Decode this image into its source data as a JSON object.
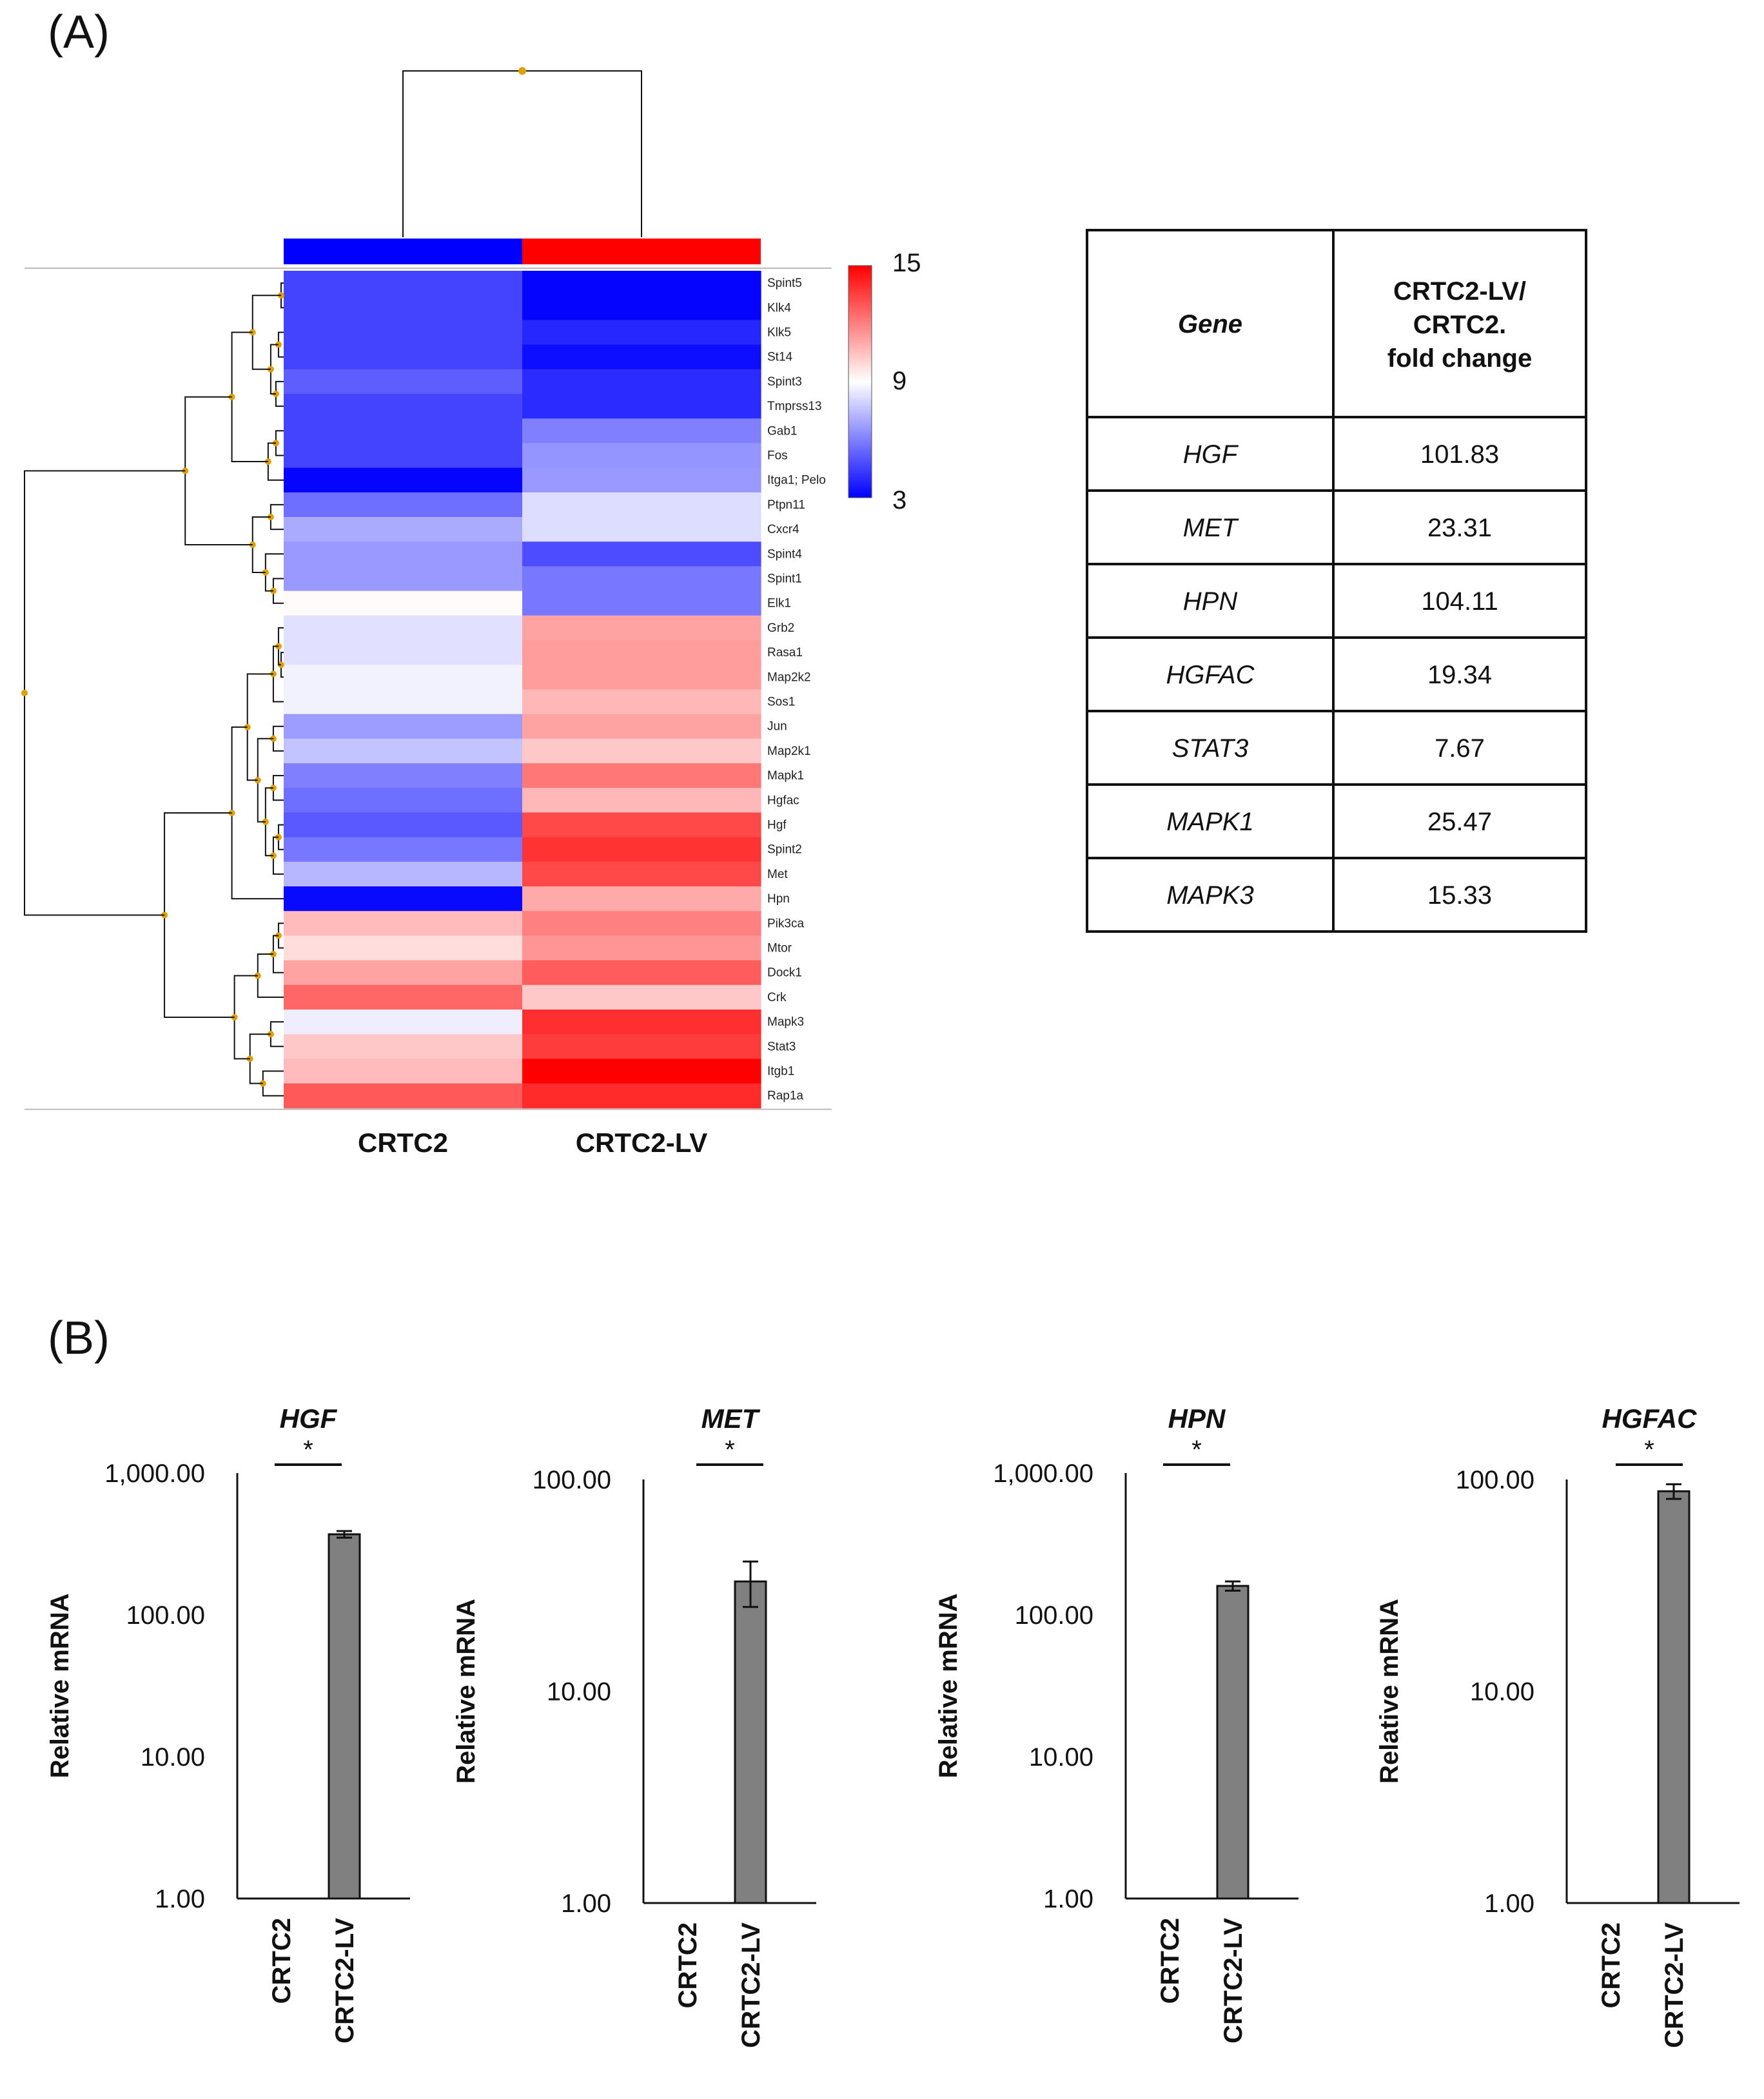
{
  "panel_a": {
    "label": "(A)"
  },
  "panel_b": {
    "label": "(B)"
  },
  "chart_data": [
    {
      "type": "heatmap",
      "columns": [
        "CRTC2",
        "CRTC2-LV"
      ],
      "column_group_colors": [
        "#0000ff",
        "#ff0000"
      ],
      "rows": [
        "Spint5",
        "Klk4",
        "Klk5",
        "St14",
        "Spint3",
        "Tmprss13",
        "Gab1",
        "Fos",
        "Itga1; Pelo",
        "Ptpn11",
        "Cxcr4",
        "Spint4",
        "Spint1",
        "Elk1",
        "Grb2",
        "Rasa1",
        "Map2k2",
        "Sos1",
        "Jun",
        "Map2k1",
        "Mapk1",
        "Hgfac",
        "Hgf",
        "Spint2",
        "Met",
        "Hpn",
        "Pik3ca",
        "Mtor",
        "Dock1",
        "Crk",
        "Mapk3",
        "Stat3",
        "Itgb1",
        "Rap1a"
      ],
      "values": [
        [
          4.6,
          3.1
        ],
        [
          4.6,
          3.1
        ],
        [
          4.6,
          3.9
        ],
        [
          4.6,
          3.3
        ],
        [
          5.2,
          4.0
        ],
        [
          4.6,
          4.0
        ],
        [
          4.6,
          6.0
        ],
        [
          4.6,
          6.5
        ],
        [
          3.1,
          6.6
        ],
        [
          5.6,
          8.2
        ],
        [
          7.0,
          8.2
        ],
        [
          6.6,
          4.8
        ],
        [
          6.6,
          5.8
        ],
        [
          9.1,
          5.8
        ],
        [
          8.3,
          11.2
        ],
        [
          8.3,
          11.3
        ],
        [
          8.7,
          11.3
        ],
        [
          8.7,
          10.7
        ],
        [
          6.7,
          11.2
        ],
        [
          7.6,
          10.3
        ],
        [
          6.0,
          12.2
        ],
        [
          5.6,
          10.7
        ],
        [
          5.1,
          13.3
        ],
        [
          5.8,
          13.8
        ],
        [
          7.3,
          13.3
        ],
        [
          3.2,
          11.0
        ],
        [
          10.6,
          12.0
        ],
        [
          9.8,
          11.5
        ],
        [
          11.2,
          12.8
        ],
        [
          12.6,
          10.3
        ],
        [
          8.6,
          13.9
        ],
        [
          10.3,
          13.6
        ],
        [
          10.6,
          15.0
        ],
        [
          12.9,
          14.0
        ]
      ],
      "colorscale": {
        "min": 3,
        "mid": 9,
        "max": 15,
        "colors": [
          "#0000ff",
          "#ffffff",
          "#ff0000"
        ],
        "ticks": [
          "15",
          "9",
          "3"
        ]
      },
      "dendrograms": {
        "rows": true,
        "columns": true
      }
    },
    {
      "type": "table",
      "headers": {
        "gene": "Gene",
        "fold_line1": "CRTC2-LV/",
        "fold_line2": "CRTC2.",
        "fold_line3": "fold change"
      },
      "rows": [
        {
          "gene": "HGF",
          "value": "101.83"
        },
        {
          "gene": "MET",
          "value": "23.31"
        },
        {
          "gene": "HPN",
          "value": "104.11"
        },
        {
          "gene": "HGFAC",
          "value": "19.34"
        },
        {
          "gene": "STAT3",
          "value": "7.67"
        },
        {
          "gene": "MAPK1",
          "value": "25.47"
        },
        {
          "gene": "MAPK3",
          "value": "15.33"
        }
      ]
    },
    {
      "type": "bar",
      "title": "HGF",
      "significance": "*",
      "ylabel": "Relative mRNA",
      "yscale": "log",
      "ylim": [
        1,
        1000
      ],
      "yticks": [
        "1,000.00",
        "100.00",
        "10.00",
        "1.00"
      ],
      "categories": [
        "CRTC2",
        "CRTC2-LV"
      ],
      "values": [
        1,
        370
      ],
      "errors": [
        0,
        20
      ],
      "bar_color": "#808080"
    },
    {
      "type": "bar",
      "title": "MET",
      "significance": "*",
      "ylabel": "Relative mRNA",
      "yscale": "log",
      "ylim": [
        1,
        100
      ],
      "yticks": [
        "100.00",
        "10.00",
        "1.00"
      ],
      "categories": [
        "CRTC2",
        "CRTC2-LV"
      ],
      "values": [
        1,
        33
      ],
      "errors": [
        0,
        8
      ],
      "bar_color": "#808080"
    },
    {
      "type": "bar",
      "title": "HPN",
      "significance": "*",
      "ylabel": "Relative mRNA",
      "yscale": "log",
      "ylim": [
        1,
        1000
      ],
      "yticks": [
        "1,000.00",
        "100.00",
        "10.00",
        "1.00"
      ],
      "categories": [
        "CRTC2",
        "CRTC2-LV"
      ],
      "values": [
        1,
        160
      ],
      "errors": [
        0,
        12
      ],
      "bar_color": "#808080"
    },
    {
      "type": "bar",
      "title": "HGFAC",
      "significance": "*",
      "ylabel": "Relative mRNA",
      "yscale": "log",
      "ylim": [
        1,
        100
      ],
      "yticks": [
        "100.00",
        "10.00",
        "1.00"
      ],
      "categories": [
        "CRTC2",
        "CRTC2-LV"
      ],
      "values": [
        1,
        88
      ],
      "errors": [
        0,
        7
      ],
      "bar_color": "#808080"
    }
  ]
}
